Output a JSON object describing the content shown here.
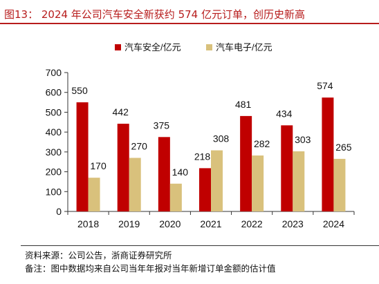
{
  "title": "图13：  2024 年公司汽车安全新获约 574 亿元订单，创历史新高",
  "source": "资料来源：公司公告，浙商证券研究所",
  "note": "备注：图中数据均来自公司当年年报对当年新增订单金额的估计值",
  "colors": {
    "accent": "#c00000",
    "safety": "#c00000",
    "electronics": "#d9c17c",
    "axis": "#333333"
  },
  "chart_data": {
    "type": "bar",
    "categories": [
      "2018",
      "2019",
      "2020",
      "2021",
      "2022",
      "2023",
      "2024"
    ],
    "series": [
      {
        "name": "汽车安全/亿元",
        "values": [
          550,
          442,
          375,
          218,
          481,
          434,
          574
        ]
      },
      {
        "name": "汽车电子/亿元",
        "values": [
          170,
          270,
          140,
          308,
          282,
          303,
          265
        ]
      }
    ],
    "ylim": [
      0,
      700
    ],
    "yticks": [
      0,
      100,
      200,
      300,
      400,
      500,
      600,
      700
    ],
    "legend_position": "top-center",
    "grid": false
  }
}
